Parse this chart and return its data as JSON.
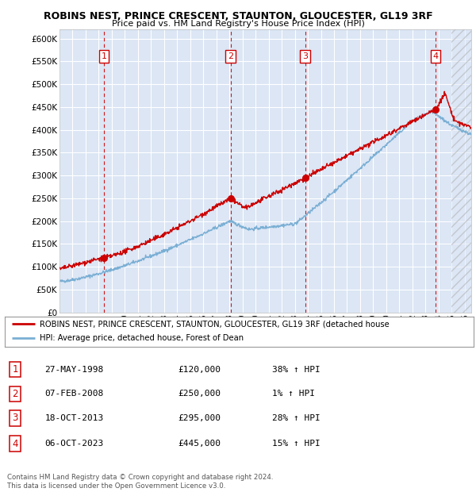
{
  "title": "ROBINS NEST, PRINCE CRESCENT, STAUNTON, GLOUCESTER, GL19 3RF",
  "subtitle": "Price paid vs. HM Land Registry's House Price Index (HPI)",
  "ylim": [
    0,
    620000
  ],
  "yticks": [
    0,
    50000,
    100000,
    150000,
    200000,
    250000,
    300000,
    350000,
    400000,
    450000,
    500000,
    550000,
    600000
  ],
  "xlim_start": 1995.0,
  "xlim_end": 2026.5,
  "plot_bg_color": "#dce6f5",
  "grid_color": "#ffffff",
  "sale_dates": [
    1998.41,
    2008.09,
    2013.8,
    2023.76
  ],
  "sale_prices": [
    120000,
    250000,
    295000,
    445000
  ],
  "sale_labels": [
    "1",
    "2",
    "3",
    "4"
  ],
  "vline_color": "#cc0000",
  "red_line_color": "#cc0000",
  "blue_line_color": "#7bafd4",
  "legend_red_label": "ROBINS NEST, PRINCE CRESCENT, STAUNTON, GLOUCESTER, GL19 3RF (detached house",
  "legend_blue_label": "HPI: Average price, detached house, Forest of Dean",
  "table_data": [
    [
      "1",
      "27-MAY-1998",
      "£120,000",
      "38% ↑ HPI"
    ],
    [
      "2",
      "07-FEB-2008",
      "£250,000",
      "1% ↑ HPI"
    ],
    [
      "3",
      "18-OCT-2013",
      "£295,000",
      "28% ↑ HPI"
    ],
    [
      "4",
      "06-OCT-2023",
      "£445,000",
      "15% ↑ HPI"
    ]
  ],
  "footer": "Contains HM Land Registry data © Crown copyright and database right 2024.\nThis data is licensed under the Open Government Licence v3.0."
}
